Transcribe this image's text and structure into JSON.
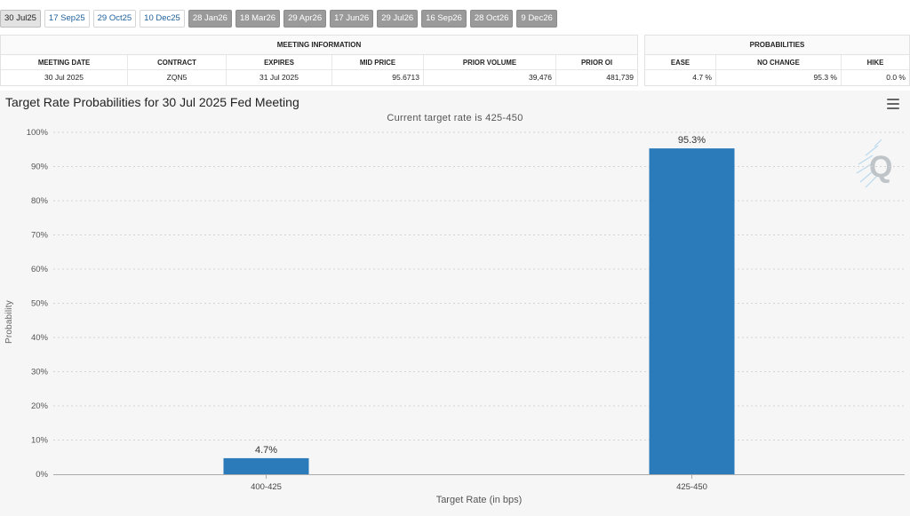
{
  "tabs": [
    {
      "label": "30 Jul25",
      "state": "selected"
    },
    {
      "label": "17 Sep25",
      "state": "available"
    },
    {
      "label": "29 Oct25",
      "state": "available"
    },
    {
      "label": "10 Dec25",
      "state": "available"
    },
    {
      "label": "28 Jan26",
      "state": "future"
    },
    {
      "label": "18 Mar26",
      "state": "future"
    },
    {
      "label": "29 Apr26",
      "state": "future"
    },
    {
      "label": "17 Jun26",
      "state": "future"
    },
    {
      "label": "29 Jul26",
      "state": "future"
    },
    {
      "label": "16 Sep26",
      "state": "future"
    },
    {
      "label": "28 Oct26",
      "state": "future"
    },
    {
      "label": "9 Dec26",
      "state": "future"
    }
  ],
  "meeting_info": {
    "title": "MEETING INFORMATION",
    "headers": {
      "meeting_date": "MEETING DATE",
      "contract": "CONTRACT",
      "expires": "EXPIRES",
      "mid_price": "MID PRICE",
      "prior_volume": "PRIOR VOLUME",
      "prior_oi": "PRIOR OI"
    },
    "row": {
      "meeting_date": "30 Jul 2025",
      "contract": "ZQN5",
      "expires": "31 Jul 2025",
      "mid_price": "95.6713",
      "prior_volume": "39,476",
      "prior_oi": "481,739"
    }
  },
  "probabilities": {
    "title": "PROBABILITIES",
    "headers": {
      "ease": "EASE",
      "no_change": "NO CHANGE",
      "hike": "HIKE"
    },
    "row": {
      "ease": "4.7 %",
      "no_change": "95.3 %",
      "hike": "0.0 %"
    }
  },
  "chart_data": {
    "type": "bar",
    "title": "Target Rate Probabilities for 30 Jul 2025 Fed Meeting",
    "subtitle": "Current target rate is 425-450",
    "categories": [
      "400-425",
      "425-450"
    ],
    "values": [
      4.7,
      95.3
    ],
    "data_labels": [
      "4.7%",
      "95.3%"
    ],
    "xlabel": "Target Rate (in bps)",
    "ylabel": "Probability",
    "ylim": [
      0,
      100
    ],
    "yticks": [
      0,
      10,
      20,
      30,
      40,
      50,
      60,
      70,
      80,
      90,
      100
    ],
    "ytick_labels": [
      "0%",
      "10%",
      "20%",
      "30%",
      "40%",
      "50%",
      "60%",
      "70%",
      "80%",
      "90%",
      "100%"
    ],
    "grid": true,
    "bar_color": "#2b7bba"
  },
  "icons": {
    "menu": "hamburger-menu-icon",
    "logo": "quikstrike-logo-icon"
  }
}
